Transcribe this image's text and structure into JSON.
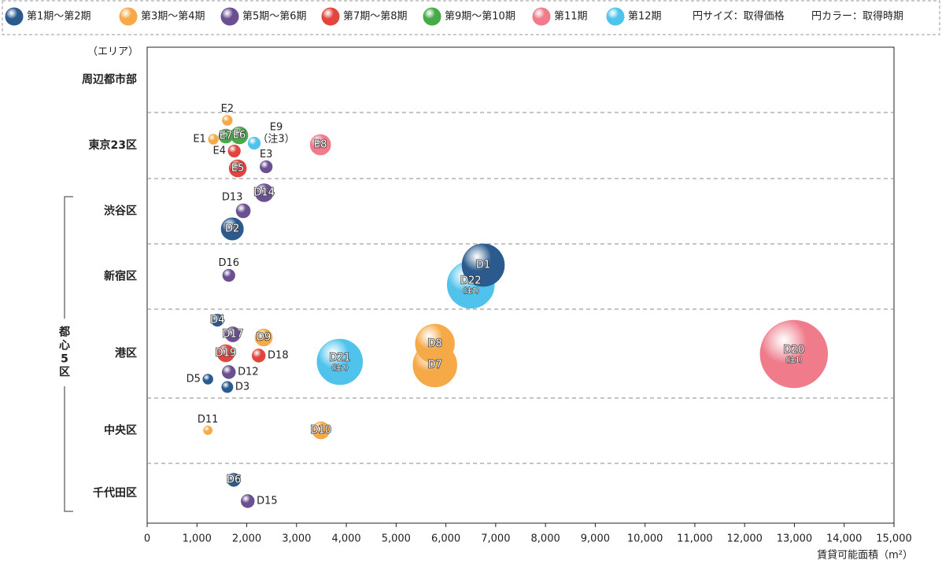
{
  "chart_data": {
    "type": "bubble",
    "legend": [
      {
        "name": "第1期～第2期",
        "color": "#2b5b8e"
      },
      {
        "name": "第3期～第4期",
        "color": "#f6a947"
      },
      {
        "name": "第5期～第6期",
        "color": "#6a4f91"
      },
      {
        "name": "第7期～第8期",
        "color": "#e2453d"
      },
      {
        "name": "第9期～第10期",
        "color": "#47a948"
      },
      {
        "name": "第11期",
        "color": "#ef7b8b"
      },
      {
        "name": "第12期",
        "color": "#4fc3ec"
      }
    ],
    "size_note": "円サイズ：取得価格",
    "color_note": "円カラー：取得時期",
    "y_label": "（エリア）",
    "group_label": "都心5区",
    "x_label": "賃貸可能面積（m²）",
    "categories": [
      "周辺都市部",
      "東京23区",
      "渋谷区",
      "新宿区",
      "港区",
      "中央区",
      "千代田区"
    ],
    "xlim": [
      0,
      15000
    ],
    "xticks": [
      0,
      {
        "value": 1000,
        "label": "1,000"
      },
      {
        "value": 2000,
        "label": "2,000"
      },
      {
        "value": 3000,
        "label": "3,000"
      },
      {
        "value": 4000,
        "label": "4,000"
      },
      {
        "value": 5000,
        "label": "5,000"
      },
      {
        "value": 6000,
        "label": "6,000"
      },
      {
        "value": 7000,
        "label": "7,000"
      },
      {
        "value": 8000,
        "label": "8,000"
      },
      {
        "value": 9000,
        "label": "9,000"
      },
      {
        "value": 10000,
        "label": "10,000"
      },
      {
        "value": 11000,
        "label": "11,000"
      },
      {
        "value": 12000,
        "label": "12,000"
      },
      {
        "value": 13000,
        "label": "13,000"
      },
      {
        "value": 14000,
        "label": "14,000"
      },
      {
        "value": 15000,
        "label": "15,000"
      }
    ],
    "points": [
      {
        "name": "E2",
        "area": "東京23区",
        "period": 1,
        "x": 1610,
        "size": 4
      },
      {
        "name": "E1",
        "area": "東京23区",
        "period": 1,
        "x": 1330,
        "size": 4
      },
      {
        "name": "E7",
        "area": "東京23区",
        "period": 4,
        "x": 1580,
        "size": 8
      },
      {
        "name": "E6",
        "area": "東京23区",
        "period": 4,
        "x": 1850,
        "size": 12
      },
      {
        "name": "E9",
        "note": "（注3）",
        "area": "東京23区",
        "period": 6,
        "x": 2150,
        "size": 6
      },
      {
        "name": "E4",
        "area": "東京23区",
        "period": 3,
        "x": 1750,
        "size": 6
      },
      {
        "name": "E5",
        "area": "東京23区",
        "period": 3,
        "x": 1820,
        "size": 12
      },
      {
        "name": "E3",
        "area": "東京23区",
        "period": 2,
        "x": 2390,
        "size": 6
      },
      {
        "name": "E8",
        "area": "東京23区",
        "period": 5,
        "x": 3480,
        "size": 17
      },
      {
        "name": "D14",
        "area": "渋谷区",
        "period": 2,
        "x": 2350,
        "size": 13
      },
      {
        "name": "D13",
        "area": "渋谷区",
        "period": 2,
        "x": 1930,
        "size": 8
      },
      {
        "name": "D2",
        "area": "渋谷区",
        "period": 0,
        "x": 1710,
        "size": 20
      },
      {
        "name": "D16",
        "area": "新宿区",
        "period": 2,
        "x": 1640,
        "size": 6
      },
      {
        "name": "D1",
        "area": "新宿区",
        "period": 0,
        "x": 6750,
        "size": 73
      },
      {
        "name": "D22",
        "note": "（注2）",
        "area": "新宿区",
        "period": 6,
        "x": 6500,
        "size": 90
      },
      {
        "name": "D4",
        "area": "港区",
        "period": 0,
        "x": 1410,
        "size": 6
      },
      {
        "name": "D17",
        "area": "港区",
        "period": 2,
        "x": 1720,
        "size": 9
      },
      {
        "name": "D9",
        "area": "港区",
        "period": 1,
        "x": 2340,
        "size": 12
      },
      {
        "name": "D19",
        "area": "港区",
        "period": 3,
        "x": 1580,
        "size": 12
      },
      {
        "name": "D18",
        "area": "港区",
        "period": 3,
        "x": 2240,
        "size": 7
      },
      {
        "name": "D12",
        "area": "港区",
        "period": 2,
        "x": 1640,
        "size": 7
      },
      {
        "name": "D5",
        "area": "港区",
        "period": 0,
        "x": 1220,
        "size": 4
      },
      {
        "name": "D3",
        "area": "港区",
        "period": 0,
        "x": 1610,
        "size": 5
      },
      {
        "name": "D21",
        "note": "（注2）",
        "area": "港区",
        "period": 6,
        "x": 3870,
        "size": 84
      },
      {
        "name": "D8",
        "area": "港区",
        "period": 1,
        "x": 5780,
        "size": 62
      },
      {
        "name": "D7",
        "area": "港区",
        "period": 1,
        "x": 5780,
        "size": 78
      },
      {
        "name": "D20",
        "note": "（注1）",
        "area": "港区",
        "period": 5,
        "x": 12990,
        "size": 185
      },
      {
        "name": "D11",
        "area": "中央区",
        "period": 1,
        "x": 1220,
        "size": 3
      },
      {
        "name": "D10",
        "area": "中央区",
        "period": 1,
        "x": 3490,
        "size": 12
      },
      {
        "name": "D6",
        "area": "千代田区",
        "period": 0,
        "x": 1740,
        "size": 7
      },
      {
        "name": "D15",
        "area": "千代田区",
        "period": 2,
        "x": 2020,
        "size": 7
      }
    ]
  }
}
